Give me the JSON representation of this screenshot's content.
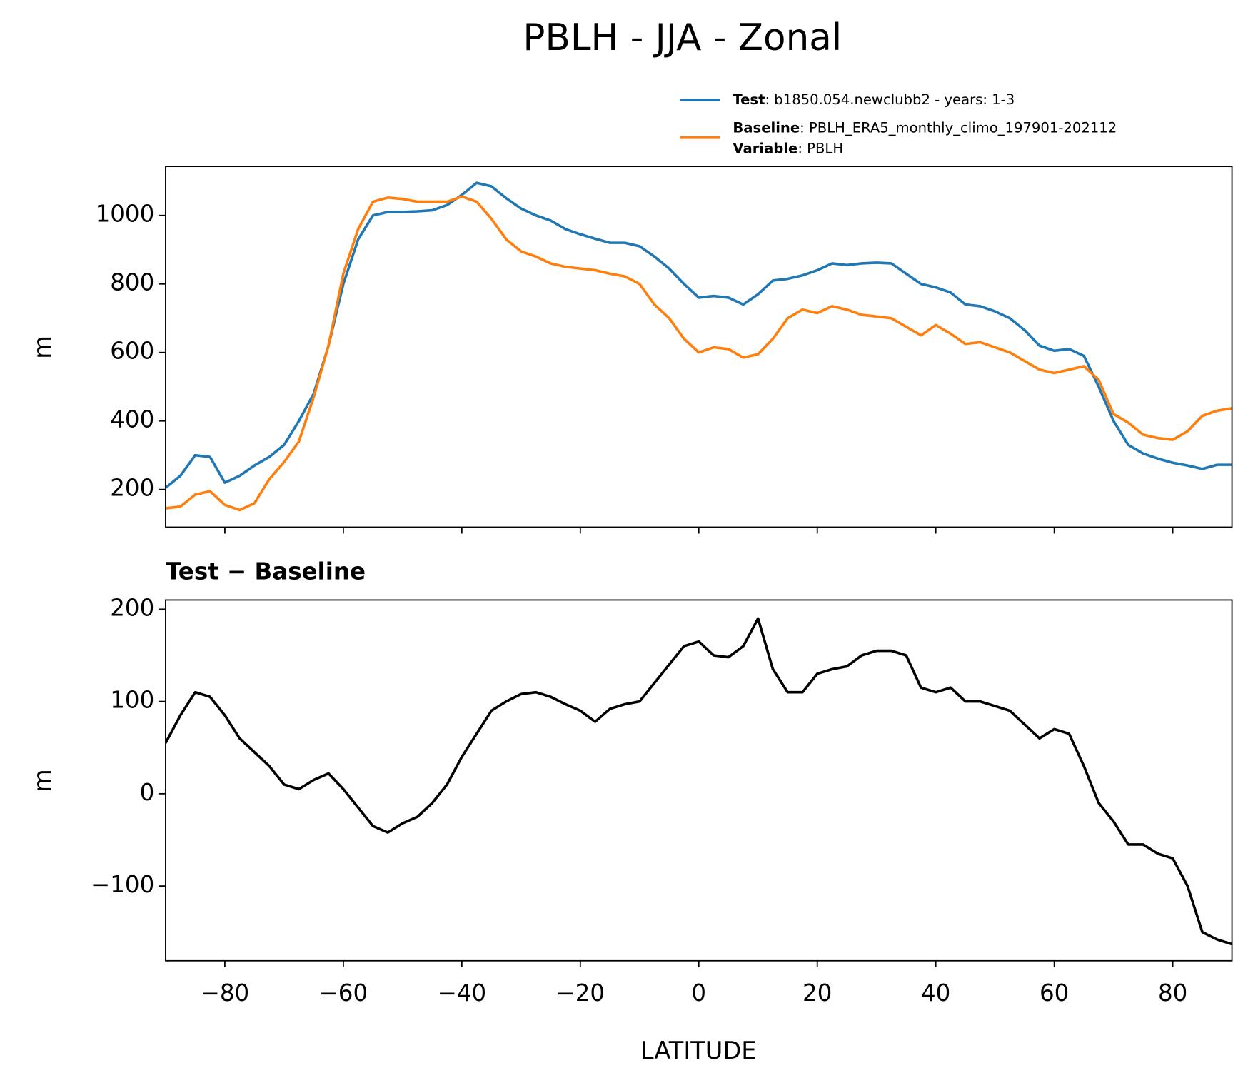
{
  "chart_data": [
    {
      "type": "line",
      "title": "PBLH - JJA - Zonal",
      "ylabel": "m",
      "x": [
        -90,
        -87.5,
        -85,
        -82.5,
        -80,
        -77.5,
        -75,
        -72.5,
        -70,
        -67.5,
        -65,
        -62.5,
        -60,
        -57.5,
        -55,
        -52.5,
        -50,
        -47.5,
        -45,
        -42.5,
        -40,
        -37.5,
        -35,
        -32.5,
        -30,
        -27.5,
        -25,
        -22.5,
        -20,
        -17.5,
        -15,
        -12.5,
        -10,
        -7.5,
        -5,
        -2.5,
        0,
        2.5,
        5,
        7.5,
        10,
        12.5,
        15,
        17.5,
        20,
        22.5,
        25,
        27.5,
        30,
        32.5,
        35,
        37.5,
        40,
        42.5,
        45,
        47.5,
        50,
        52.5,
        55,
        57.5,
        60,
        62.5,
        65,
        67.5,
        70,
        72.5,
        75,
        77.5,
        80,
        82.5,
        85,
        87.5,
        90
      ],
      "series": [
        {
          "name": "Test",
          "description": ": b1850.054.newclubb2 - years: 1-3",
          "color": "#1f77b4",
          "values": [
            205,
            240,
            300,
            295,
            220,
            240,
            270,
            295,
            330,
            400,
            480,
            620,
            800,
            930,
            1000,
            1010,
            1010,
            1012,
            1015,
            1030,
            1060,
            1095,
            1085,
            1050,
            1020,
            1000,
            985,
            960,
            945,
            932,
            920,
            920,
            910,
            880,
            845,
            800,
            760,
            765,
            760,
            740,
            770,
            810,
            815,
            825,
            840,
            860,
            855,
            860,
            862,
            860,
            830,
            800,
            790,
            775,
            740,
            735,
            720,
            700,
            665,
            620,
            605,
            610,
            590,
            500,
            400,
            330,
            305,
            290,
            278,
            270,
            260,
            272,
            272
          ]
        },
        {
          "name": "Baseline",
          "description": ": PBLH_ERA5_monthly_climo_197901-202112",
          "color": "#ff7f0e",
          "values": [
            145,
            150,
            185,
            195,
            155,
            140,
            160,
            230,
            280,
            340,
            470,
            620,
            830,
            960,
            1040,
            1052,
            1048,
            1040,
            1040,
            1040,
            1055,
            1040,
            990,
            930,
            895,
            880,
            860,
            850,
            845,
            840,
            830,
            822,
            800,
            740,
            700,
            640,
            600,
            615,
            610,
            585,
            595,
            640,
            700,
            725,
            715,
            735,
            725,
            710,
            705,
            700,
            675,
            650,
            680,
            655,
            625,
            630,
            615,
            600,
            575,
            550,
            540,
            550,
            560,
            520,
            420,
            395,
            360,
            350,
            345,
            370,
            415,
            430,
            437
          ]
        }
      ],
      "legend_note": {
        "name": "Variable",
        "description": ": PBLH"
      },
      "xlim": [
        -90,
        90
      ],
      "xticks": [
        -80,
        -60,
        -40,
        -20,
        0,
        20,
        40,
        60,
        80
      ],
      "xtick_labels": false,
      "ylim": [
        90,
        1143
      ],
      "yticks": [
        200,
        400,
        600,
        800,
        1000
      ]
    },
    {
      "type": "line",
      "title": "Test − Baseline",
      "ylabel": "m",
      "xlabel": "LATITUDE",
      "x": [
        -90,
        -87.5,
        -85,
        -82.5,
        -80,
        -77.5,
        -75,
        -72.5,
        -70,
        -67.5,
        -65,
        -62.5,
        -60,
        -57.5,
        -55,
        -52.5,
        -50,
        -47.5,
        -45,
        -42.5,
        -40,
        -37.5,
        -35,
        -32.5,
        -30,
        -27.5,
        -25,
        -22.5,
        -20,
        -17.5,
        -15,
        -12.5,
        -10,
        -7.5,
        -5,
        -2.5,
        0,
        2.5,
        5,
        7.5,
        10,
        12.5,
        15,
        17.5,
        20,
        22.5,
        25,
        27.5,
        30,
        32.5,
        35,
        37.5,
        40,
        42.5,
        45,
        47.5,
        50,
        52.5,
        55,
        57.5,
        60,
        62.5,
        65,
        67.5,
        70,
        72.5,
        75,
        77.5,
        80,
        82.5,
        85,
        87.5,
        90
      ],
      "series": [
        {
          "color": "#000000",
          "values": [
            55,
            85,
            110,
            105,
            85,
            60,
            45,
            30,
            10,
            5,
            15,
            22,
            5,
            -15,
            -35,
            -42,
            -32,
            -25,
            -10,
            10,
            40,
            65,
            90,
            100,
            108,
            110,
            105,
            97,
            90,
            78,
            92,
            97,
            100,
            120,
            140,
            160,
            165,
            150,
            148,
            160,
            190,
            135,
            110,
            110,
            130,
            135,
            138,
            150,
            155,
            155,
            150,
            115,
            110,
            115,
            100,
            100,
            95,
            90,
            75,
            60,
            70,
            65,
            30,
            -10,
            -30,
            -55,
            -55,
            -65,
            -70,
            -100,
            -150,
            -158,
            -163
          ]
        }
      ],
      "xlim": [
        -90,
        90
      ],
      "xticks": [
        {
          "value": -80,
          "label": "−80"
        },
        {
          "value": -60,
          "label": "−60"
        },
        {
          "value": -40,
          "label": "−40"
        },
        {
          "value": -20,
          "label": "−20"
        },
        0,
        20,
        40,
        60,
        80
      ],
      "ylim": [
        -181,
        210
      ],
      "yticks": [
        {
          "value": -100,
          "label": "−100"
        },
        0,
        100,
        200
      ]
    }
  ]
}
